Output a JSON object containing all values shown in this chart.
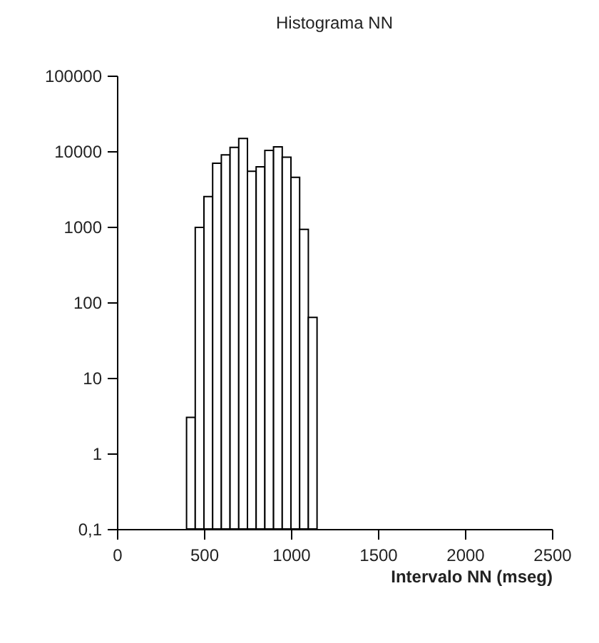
{
  "chart_data": {
    "type": "histogram",
    "title": "Histograma NN",
    "xlabel": "Intervalo NN (mseg)",
    "bins": [
      400,
      450,
      500,
      550,
      600,
      650,
      700,
      750,
      800,
      850,
      900,
      950,
      1000,
      1050,
      1100,
      1150
    ],
    "values": [
      3,
      980,
      2500,
      6900,
      8900,
      11200,
      14700,
      5400,
      6200,
      10200,
      11400,
      8300,
      4500,
      920,
      63
    ],
    "color": "#ffffff",
    "log": "y",
    "xlim": [
      0,
      2500
    ],
    "xticks": [
      0,
      500,
      1000,
      1500,
      2000,
      2500
    ],
    "ylim": [
      0.1,
      100000
    ],
    "yticks": [
      {
        "value": 0.1,
        "label": "0,1"
      },
      1,
      10,
      100,
      1000,
      10000,
      100000
    ],
    "grid": false
  }
}
